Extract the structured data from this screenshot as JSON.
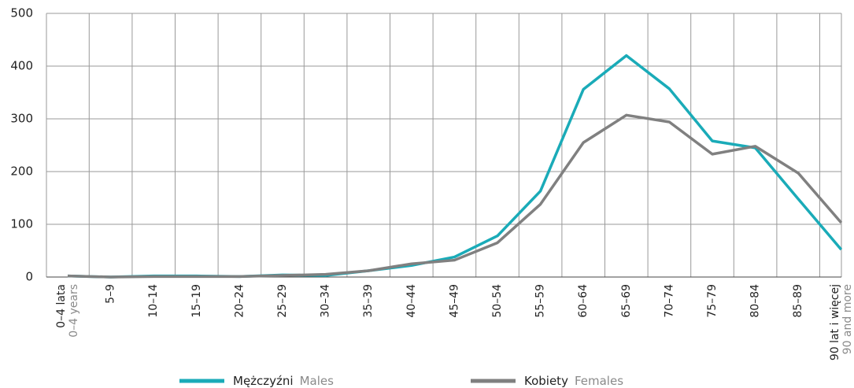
{
  "chart_data": {
    "type": "line",
    "categories": [
      "0–4 lata",
      "5–9",
      "10–14",
      "15–19",
      "20–24",
      "25–29",
      "30–34",
      "35–39",
      "40–44",
      "45–49",
      "50–54",
      "55–59",
      "60–64",
      "65–69",
      "70–74",
      "75–79",
      "80–84",
      "85–89",
      "90 lat i więcej"
    ],
    "category_translations": [
      "0–4 years",
      null,
      null,
      null,
      null,
      null,
      null,
      null,
      null,
      null,
      null,
      null,
      null,
      null,
      null,
      null,
      null,
      null,
      "90 and more"
    ],
    "series": [
      {
        "name": "Mężczyźni",
        "name_en": "Males",
        "color": "#1aabb8",
        "values": [
          2,
          0,
          2,
          2,
          1,
          4,
          3,
          12,
          22,
          38,
          78,
          163,
          356,
          420,
          357,
          258,
          245,
          148,
          52
        ]
      },
      {
        "name": "Kobiety",
        "name_en": "Females",
        "color": "#808080",
        "values": [
          2,
          0,
          1,
          1,
          1,
          3,
          5,
          12,
          25,
          32,
          65,
          138,
          255,
          307,
          294,
          233,
          248,
          197,
          103
        ]
      }
    ],
    "ylim": [
      0,
      500
    ],
    "yticks": [
      0,
      100,
      200,
      300,
      400,
      500
    ],
    "grid": true
  }
}
